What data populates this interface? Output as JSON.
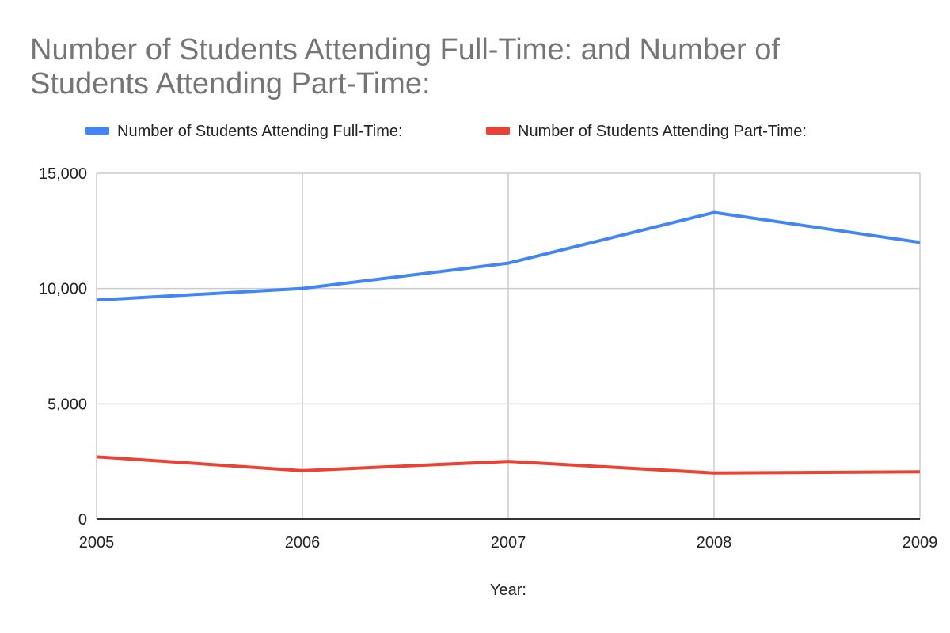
{
  "chart_data": {
    "type": "line",
    "title_lines": [
      "Number of Students Attending Full-Time: and Number of",
      "Students Attending Part-Time:"
    ],
    "xlabel": "Year:",
    "ylabel": "",
    "categories": [
      "2005",
      "2006",
      "2007",
      "2008",
      "2009"
    ],
    "ylim": [
      0,
      15000
    ],
    "yticks": [
      0,
      5000,
      10000,
      15000
    ],
    "ytick_labels": [
      "0",
      "5,000",
      "10,000",
      "15,000"
    ],
    "grid": true,
    "legend_position": "top",
    "series": [
      {
        "name": "Number of Students Attending Full-Time:",
        "color": "#4285f4",
        "values": [
          9500,
          10000,
          11100,
          13300,
          12000
        ]
      },
      {
        "name": "Number of Students Attending Part-Time:",
        "color": "#ea4335",
        "values": [
          2700,
          2100,
          2500,
          2000,
          2050
        ]
      }
    ]
  }
}
